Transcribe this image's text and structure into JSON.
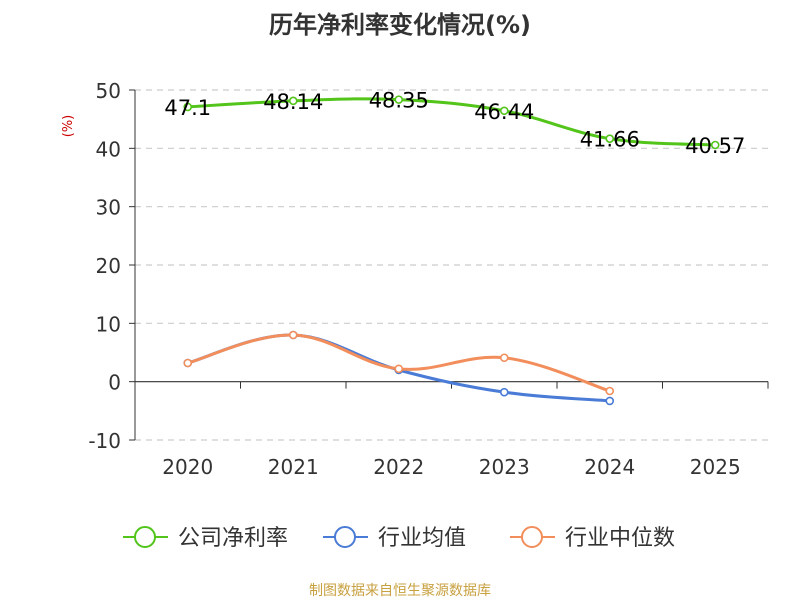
{
  "chart_data": {
    "type": "line",
    "title": "历年净利率变化情况(%)",
    "ylabel": "(%)",
    "xlabel": "",
    "categories": [
      "2020",
      "2021",
      "2022",
      "2023",
      "2024",
      "2025"
    ],
    "ylim": [
      -10,
      50
    ],
    "yticks": [
      -10,
      0,
      10,
      20,
      30,
      40,
      50
    ],
    "grid": true,
    "legend_position": "bottom",
    "series": [
      {
        "name": "公司净利率",
        "color": "#52c41a",
        "values": [
          47.1,
          48.14,
          48.35,
          46.44,
          41.66,
          40.57
        ],
        "labels": [
          "47.1",
          "48.14",
          "48.35",
          "46.44",
          "41.66",
          "40.57"
        ]
      },
      {
        "name": "行业均值",
        "color": "#4a7bd6",
        "values": [
          3.2,
          8.0,
          2.0,
          -1.8,
          -3.3,
          null
        ]
      },
      {
        "name": "行业中位数",
        "color": "#f28e5c",
        "values": [
          3.2,
          8.0,
          2.2,
          4.1,
          -1.6,
          null
        ]
      }
    ]
  },
  "source": "制图数据来自恒生聚源数据库",
  "colors": {
    "axis": "#333333",
    "grid": "#cccccc",
    "title": "#333333",
    "ylabel": "#cc0000",
    "source": "#c8a040"
  }
}
